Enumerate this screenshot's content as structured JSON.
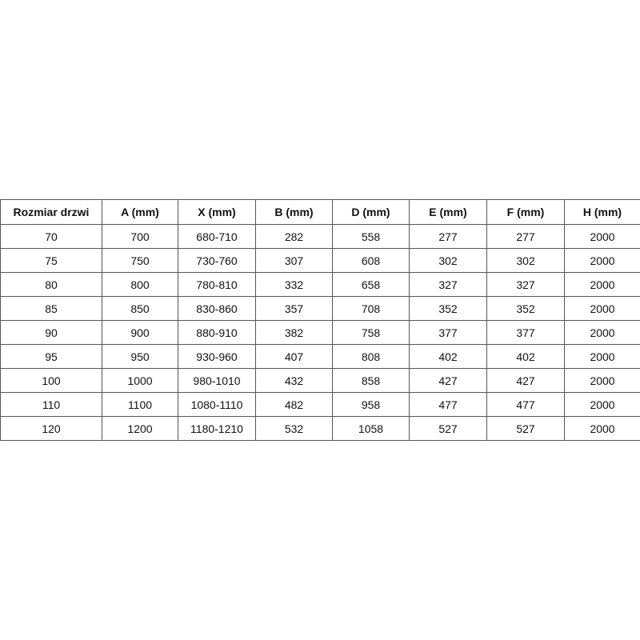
{
  "table": {
    "header": [
      "Rozmiar drzwi",
      "A (mm)",
      "X (mm)",
      "B (mm)",
      "D (mm)",
      "E (mm)",
      "F (mm)",
      "H (mm)"
    ],
    "rows": [
      [
        "70",
        "700",
        "680-710",
        "282",
        "558",
        "277",
        "277",
        "2000"
      ],
      [
        "75",
        "750",
        "730-760",
        "307",
        "608",
        "302",
        "302",
        "2000"
      ],
      [
        "80",
        "800",
        "780-810",
        "332",
        "658",
        "327",
        "327",
        "2000"
      ],
      [
        "85",
        "850",
        "830-860",
        "357",
        "708",
        "352",
        "352",
        "2000"
      ],
      [
        "90",
        "900",
        "880-910",
        "382",
        "758",
        "377",
        "377",
        "2000"
      ],
      [
        "95",
        "950",
        "930-960",
        "407",
        "808",
        "402",
        "402",
        "2000"
      ],
      [
        "100",
        "1000",
        "980-1010",
        "432",
        "858",
        "427",
        "427",
        "2000"
      ],
      [
        "110",
        "1100",
        "1080-1110",
        "482",
        "958",
        "477",
        "477",
        "2000"
      ],
      [
        "120",
        "1200",
        "1180-1210",
        "532",
        "1058",
        "527",
        "527",
        "2000"
      ]
    ]
  }
}
